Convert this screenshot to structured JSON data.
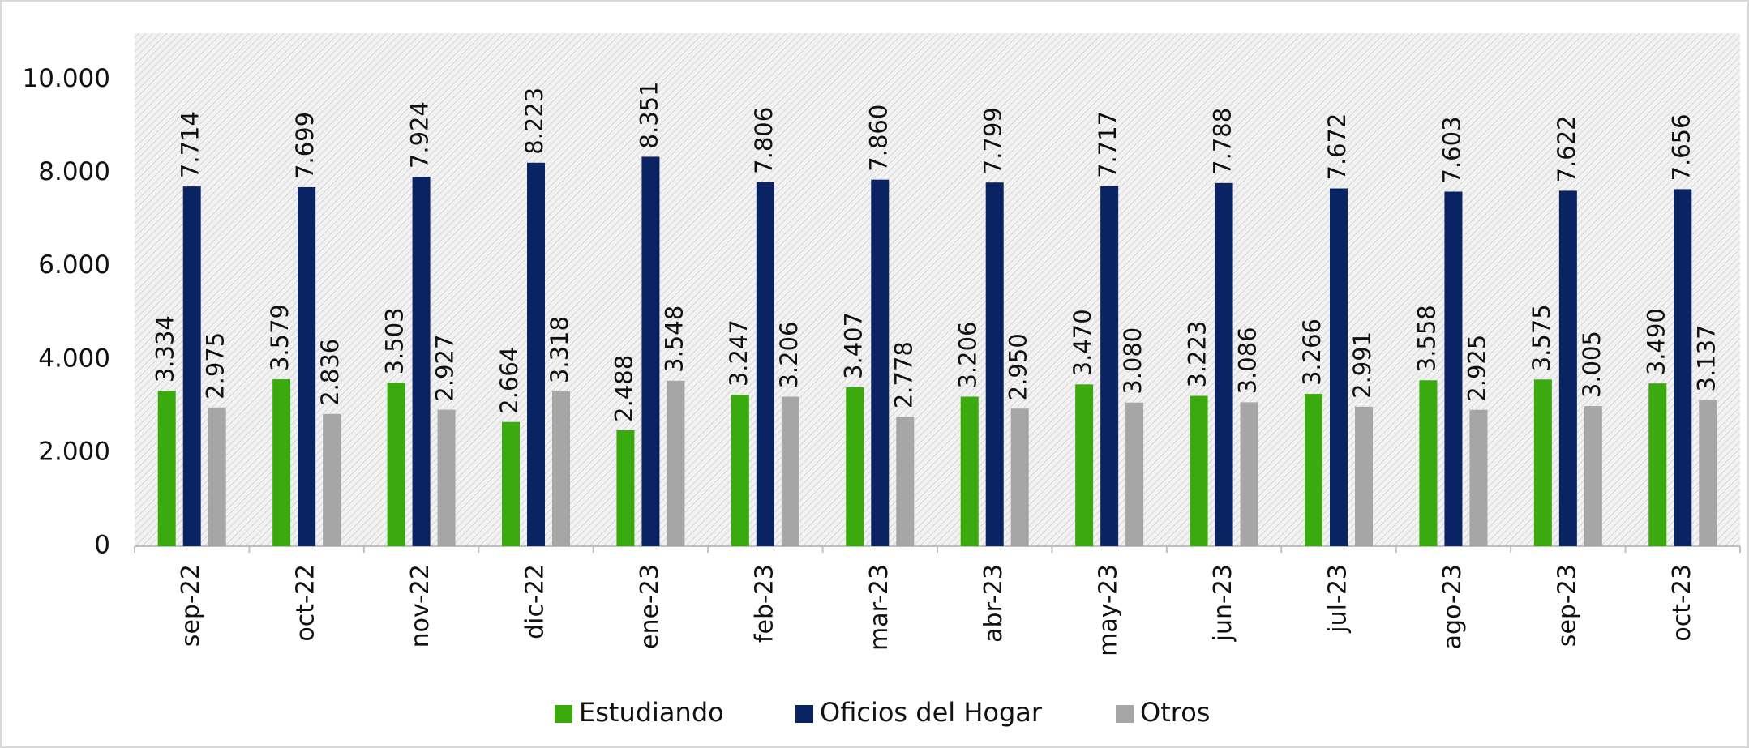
{
  "chart_data": {
    "type": "bar",
    "categories": [
      "sep-22",
      "oct-22",
      "nov-22",
      "dic-22",
      "ene-23",
      "feb-23",
      "mar-23",
      "abr-23",
      "may-23",
      "jun-23",
      "jul-23",
      "ago-23",
      "sep-23",
      "oct-23"
    ],
    "series": [
      {
        "name": "Estudiando",
        "color": "#3aaa0e",
        "values": [
          3334,
          3579,
          3503,
          2664,
          2488,
          3247,
          3407,
          3206,
          3470,
          3223,
          3266,
          3558,
          3575,
          3490
        ],
        "value_labels": [
          "3.334",
          "3.579",
          "3.503",
          "2.664",
          "2.488",
          "3.247",
          "3.407",
          "3.206",
          "3.470",
          "3.223",
          "3.266",
          "3.558",
          "3.575",
          "3.490"
        ]
      },
      {
        "name": "Oficios del Hogar",
        "color": "#0a2463",
        "values": [
          7714,
          7699,
          7924,
          8223,
          8351,
          7806,
          7860,
          7799,
          7717,
          7788,
          7672,
          7603,
          7622,
          7656
        ],
        "value_labels": [
          "7.714",
          "7.699",
          "7.924",
          "8.223",
          "8.351",
          "7.806",
          "7.860",
          "7.799",
          "7.717",
          "7.788",
          "7.672",
          "7.603",
          "7.622",
          "7.656"
        ]
      },
      {
        "name": "Otros",
        "color": "#a6a6a6",
        "values": [
          2975,
          2836,
          2927,
          3318,
          3548,
          3206,
          2778,
          2950,
          3080,
          3086,
          2991,
          2925,
          3005,
          3137
        ],
        "value_labels": [
          "2.975",
          "2.836",
          "2.927",
          "3.318",
          "3.548",
          "3.206",
          "2.778",
          "2.950",
          "3.080",
          "3.086",
          "2.991",
          "2.925",
          "3.005",
          "3.137"
        ]
      }
    ],
    "ylim": [
      0,
      11000
    ],
    "yticks": [
      0,
      {
        "value": 2000,
        "label": "2.000"
      },
      {
        "value": 4000,
        "label": "4.000"
      },
      {
        "value": 6000,
        "label": "6.000"
      },
      {
        "value": 8000,
        "label": "8.000"
      },
      {
        "value": 10000,
        "label": "10.000"
      }
    ],
    "legend": "bottom"
  }
}
